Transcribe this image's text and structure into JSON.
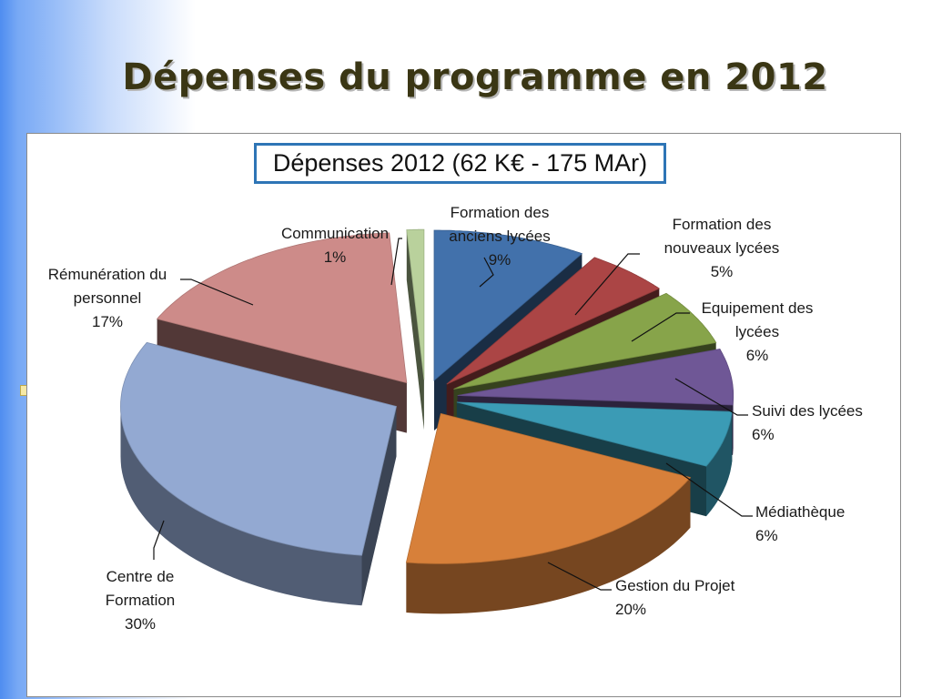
{
  "slide": {
    "title": "Dépenses du programme en 2012"
  },
  "chart_data": {
    "type": "pie",
    "title": "Dépenses 2012 (62 K€ - 175 MAr)",
    "slices": [
      {
        "label": [
          "Formation des",
          "anciens lycées"
        ],
        "percent_label": "9%",
        "value": 9,
        "color": "#4271ab"
      },
      {
        "label": [
          "Formation des",
          "nouveaux lycées"
        ],
        "percent_label": "5%",
        "value": 5,
        "color": "#ab4545"
      },
      {
        "label": [
          "Equipement des",
          "lycées"
        ],
        "percent_label": "6%",
        "value": 6,
        "color": "#87a44a"
      },
      {
        "label": [
          "Suivi des lycées"
        ],
        "percent_label": "6%",
        "value": 6,
        "color": "#6f5796"
      },
      {
        "label": [
          "Médiathèque"
        ],
        "percent_label": "6%",
        "value": 6,
        "color": "#3b9bb5"
      },
      {
        "label": [
          "Gestion du Projet"
        ],
        "percent_label": "20%",
        "value": 20,
        "color": "#d7803a"
      },
      {
        "label": [
          "Centre de",
          "Formation"
        ],
        "percent_label": "30%",
        "value": 30,
        "color": "#93a9d2"
      },
      {
        "label": [
          "Rémunération du",
          "personnel"
        ],
        "percent_label": "17%",
        "value": 17,
        "color": "#cd8b89"
      },
      {
        "label": [
          "Communication"
        ],
        "percent_label": "1%",
        "value": 1,
        "color": "#b9d19c"
      }
    ],
    "style": "exploded 3D pie"
  }
}
